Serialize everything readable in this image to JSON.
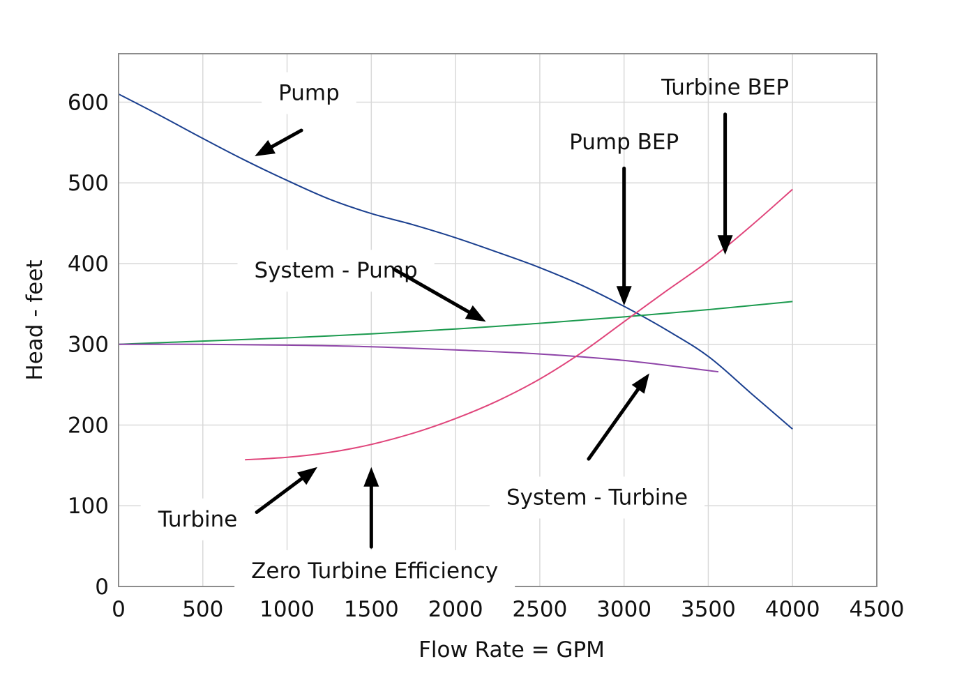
{
  "chart_data": {
    "type": "line",
    "title": "",
    "xlabel": "Flow Rate = GPM",
    "ylabel": "Head - feet",
    "xlim": [
      0,
      4500
    ],
    "ylim": [
      0,
      660
    ],
    "xticks": [
      0,
      500,
      1000,
      1500,
      2000,
      2500,
      3000,
      3500,
      4000,
      4500
    ],
    "yticks": [
      0,
      100,
      200,
      300,
      400,
      500,
      600
    ],
    "grid": true,
    "legend": "none",
    "series": [
      {
        "key": "pump",
        "color": "#1a3f8f",
        "points": [
          [
            0,
            610
          ],
          [
            250,
            583
          ],
          [
            500,
            555
          ],
          [
            750,
            528
          ],
          [
            1000,
            503
          ],
          [
            1250,
            480
          ],
          [
            1500,
            462
          ],
          [
            1750,
            448
          ],
          [
            2000,
            432
          ],
          [
            2250,
            414
          ],
          [
            2500,
            395
          ],
          [
            2750,
            373
          ],
          [
            3000,
            347
          ],
          [
            3250,
            318
          ],
          [
            3500,
            285
          ],
          [
            3750,
            240
          ],
          [
            4000,
            195
          ]
        ]
      },
      {
        "key": "system_pump",
        "color": "#1b9a4e",
        "points": [
          [
            0,
            300
          ],
          [
            500,
            304
          ],
          [
            1000,
            308
          ],
          [
            1500,
            313
          ],
          [
            2000,
            319
          ],
          [
            2500,
            326
          ],
          [
            3000,
            334
          ],
          [
            3500,
            343
          ],
          [
            4000,
            353
          ]
        ]
      },
      {
        "key": "system_turbine",
        "color": "#8e44a8",
        "points": [
          [
            0,
            300
          ],
          [
            500,
            300
          ],
          [
            1000,
            299
          ],
          [
            1500,
            297
          ],
          [
            2000,
            293
          ],
          [
            2500,
            288
          ],
          [
            3000,
            280
          ],
          [
            3560,
            266
          ]
        ]
      },
      {
        "key": "turbine",
        "color": "#e0457b",
        "points": [
          [
            750,
            157
          ],
          [
            1000,
            160
          ],
          [
            1250,
            166
          ],
          [
            1500,
            176
          ],
          [
            1750,
            190
          ],
          [
            2000,
            208
          ],
          [
            2250,
            230
          ],
          [
            2500,
            257
          ],
          [
            2750,
            290
          ],
          [
            3000,
            328
          ],
          [
            3250,
            366
          ],
          [
            3500,
            403
          ],
          [
            3750,
            446
          ],
          [
            4000,
            492
          ]
        ]
      }
    ],
    "annotations": [
      {
        "text": "Pump",
        "x": 1130,
        "y": 612,
        "bg": true,
        "arrow": [
          [
            1085,
            565
          ],
          [
            808,
            533
          ]
        ]
      },
      {
        "text": "Turbine BEP",
        "x": 3600,
        "y": 619,
        "bg": false,
        "arrow": [
          [
            3600,
            585
          ],
          [
            3600,
            411
          ]
        ]
      },
      {
        "text": "Pump BEP",
        "x": 3000,
        "y": 551,
        "bg": false,
        "arrow": [
          [
            3000,
            518
          ],
          [
            3000,
            348
          ]
        ]
      },
      {
        "text": "System - Pump",
        "x": 1290,
        "y": 392,
        "bg": true,
        "arrow": [
          [
            1635,
            393
          ],
          [
            2180,
            328
          ]
        ]
      },
      {
        "text": "System - Turbine",
        "x": 2840,
        "y": 111,
        "bg": true,
        "arrow": [
          [
            2790,
            158
          ],
          [
            3150,
            264
          ]
        ]
      },
      {
        "text": "Turbine",
        "x": 470,
        "y": 84,
        "bg": true,
        "arrow": [
          [
            820,
            92
          ],
          [
            1180,
            148
          ]
        ]
      },
      {
        "text": "Zero Turbine Efficiency",
        "x": 1520,
        "y": 20,
        "bg": true,
        "arrow": [
          [
            1500,
            49
          ],
          [
            1500,
            148
          ]
        ]
      }
    ]
  }
}
